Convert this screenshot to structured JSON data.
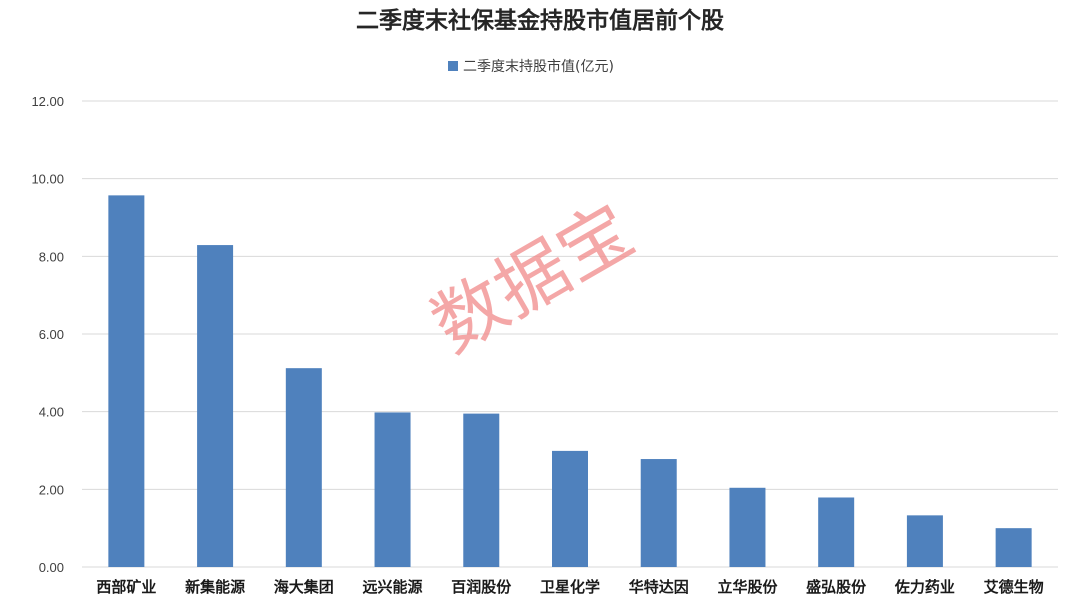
{
  "watermark": "数据宝",
  "chart_data": {
    "type": "bar",
    "title": "二季度末社保基金持股市值居前个股",
    "xlabel": "",
    "ylabel": "",
    "ylim": [
      0,
      12
    ],
    "yticks": [
      "0.00",
      "2.00",
      "4.00",
      "6.00",
      "8.00",
      "10.00",
      "12.00"
    ],
    "grid": true,
    "legend_position": "top-center",
    "categories": [
      "西部矿业",
      "新集能源",
      "海大集团",
      "远兴能源",
      "百润股份",
      "卫星化学",
      "华特达因",
      "立华股份",
      "盛弘股份",
      "佐力药业",
      "艾德生物"
    ],
    "series": [
      {
        "name": "二季度末持股市值(亿元)",
        "color": "#4f81bd",
        "values": [
          9.57,
          8.29,
          5.12,
          3.98,
          3.95,
          2.99,
          2.78,
          2.04,
          1.79,
          1.33,
          1.0
        ]
      }
    ]
  }
}
